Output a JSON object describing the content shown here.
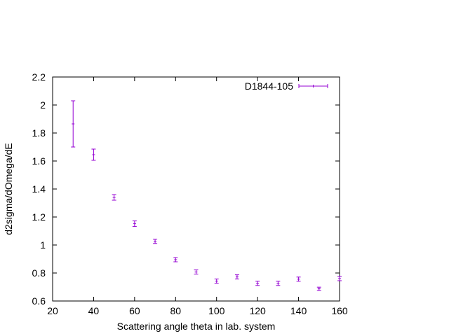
{
  "chart_data": {
    "type": "scatter",
    "title": "",
    "xlabel": "Scattering angle theta in lab. system",
    "ylabel": "d2sigma/dOmega/dE",
    "xlim": [
      20,
      160
    ],
    "ylim": [
      0.6,
      2.2
    ],
    "xticks": [
      20,
      40,
      60,
      80,
      100,
      120,
      140,
      160
    ],
    "yticks": [
      0.6,
      0.8,
      1,
      1.2,
      1.4,
      1.6,
      1.8,
      2,
      2.2
    ],
    "grid": false,
    "legend_position": "top-right",
    "series": [
      {
        "name": "D1844-105",
        "color": "#9400d3",
        "errorbars": "y",
        "points": [
          {
            "x": 30,
            "y": 1.865,
            "err": 0.165
          },
          {
            "x": 40,
            "y": 1.645,
            "err": 0.04
          },
          {
            "x": 50,
            "y": 1.34,
            "err": 0.02
          },
          {
            "x": 60,
            "y": 1.152,
            "err": 0.02
          },
          {
            "x": 70,
            "y": 1.026,
            "err": 0.015
          },
          {
            "x": 80,
            "y": 0.895,
            "err": 0.015
          },
          {
            "x": 90,
            "y": 0.807,
            "err": 0.015
          },
          {
            "x": 100,
            "y": 0.742,
            "err": 0.015
          },
          {
            "x": 110,
            "y": 0.772,
            "err": 0.015
          },
          {
            "x": 120,
            "y": 0.726,
            "err": 0.015
          },
          {
            "x": 130,
            "y": 0.726,
            "err": 0.015
          },
          {
            "x": 140,
            "y": 0.756,
            "err": 0.015
          },
          {
            "x": 150,
            "y": 0.687,
            "err": 0.012
          },
          {
            "x": 160,
            "y": 0.76,
            "err": 0.015
          }
        ]
      }
    ]
  }
}
